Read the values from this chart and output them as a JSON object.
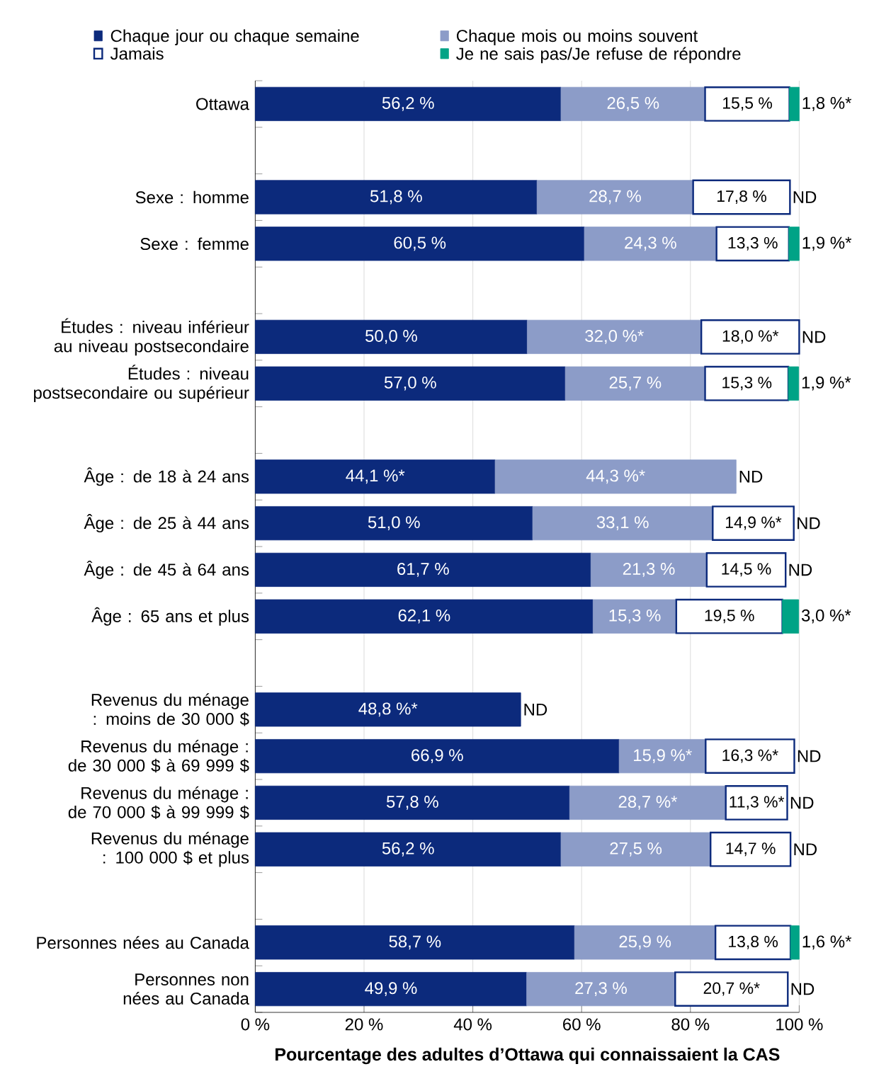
{
  "chart_data": {
    "type": "bar",
    "orientation": "horizontal",
    "stacked": true,
    "categories": [
      "Ottawa",
      null,
      "Sexe : homme",
      "Sexe : femme",
      null,
      "Études : niveau inférieur au niveau postsecondaire",
      "Études : niveau postsecondaire ou supérieur",
      null,
      "Âge : de 18 à 24 ans",
      "Âge : de 25 à 44 ans",
      "Âge : de 45 à 64 ans",
      "Âge : 65 ans et plus",
      null,
      "Revenus du ménage : moins de 30 000 $",
      "Revenus du ménage : de 30 000 $ à 69 999 $",
      "Revenus du ménage : de 70 000 $ à 99 999 $",
      "Revenus du ménage : 100 000 $ et plus",
      null,
      "Personnes nées au Canada",
      "Personnes non nées au Canada"
    ],
    "series": [
      {
        "name": "Chaque jour ou chaque semaine",
        "color": "#0c2a7c",
        "values": [
          56.2,
          null,
          51.8,
          60.5,
          null,
          50.0,
          57.0,
          null,
          44.1,
          51.0,
          61.7,
          62.1,
          null,
          48.8,
          66.9,
          57.8,
          56.2,
          null,
          58.7,
          49.9
        ],
        "value_labels": [
          "56,2 %",
          null,
          "51,8 %",
          "60,5 %",
          null,
          "50,0 %",
          "57,0 %",
          null,
          "44,1 %*",
          "51,0 %",
          "61,7 %",
          "62,1 %",
          null,
          "48,8 %*",
          "66,9 %",
          "57,8 %",
          "56,2 %",
          null,
          "58,7 %",
          "49,9 %"
        ]
      },
      {
        "name": "Chaque mois ou moins souvent",
        "color": "#8c9cc8",
        "values": [
          26.5,
          null,
          28.7,
          24.3,
          null,
          32.0,
          25.7,
          null,
          44.3,
          33.1,
          21.3,
          15.3,
          null,
          null,
          15.9,
          28.7,
          27.5,
          null,
          25.9,
          27.3
        ],
        "value_labels": [
          "26,5 %",
          null,
          "28,7 %",
          "24,3 %",
          null,
          "32,0 %*",
          "25,7 %",
          null,
          "44,3 %*",
          "33,1 %",
          "21,3 %",
          "15,3 %",
          null,
          null,
          "15,9 %*",
          "28,7 %*",
          "27,5 %",
          null,
          "25,9 %",
          "27,3 %"
        ]
      },
      {
        "name": "Jamais",
        "color": "#0c2a7c",
        "values": [
          15.5,
          null,
          17.8,
          13.3,
          null,
          18.0,
          15.3,
          null,
          null,
          14.9,
          14.5,
          19.5,
          null,
          null,
          16.3,
          11.3,
          14.7,
          null,
          13.8,
          20.7
        ],
        "value_labels": [
          "15,5 %",
          null,
          "17,8 %",
          "13,3 %",
          null,
          "18,0 %*",
          "15,3 %",
          null,
          null,
          "14,9 %*",
          "14,5 %",
          "19,5 %",
          null,
          null,
          "16,3 %*",
          "11,3 %*",
          "14,7 %",
          null,
          "13,8 %",
          "20,7 %*"
        ]
      },
      {
        "name": "Je ne sais pas/Je refuse de répondre",
        "color": "#00a386",
        "values": [
          1.8,
          null,
          null,
          1.9,
          null,
          null,
          1.9,
          null,
          null,
          null,
          null,
          3.0,
          null,
          null,
          null,
          null,
          null,
          null,
          1.6,
          null
        ],
        "value_labels": [
          "1,8 %*",
          null,
          "ND",
          "1,9 %*",
          null,
          "ND",
          "1,9 %*",
          null,
          "ND",
          "ND",
          "ND",
          "3,0 %*",
          null,
          "ND",
          "ND",
          "ND",
          "ND",
          null,
          "1,6 %*",
          "ND"
        ]
      }
    ],
    "xlim": [
      0,
      100
    ],
    "xticks": [
      {
        "value": 0,
        "label": "0 %"
      },
      {
        "value": 20,
        "label": "20 %"
      },
      {
        "value": 40,
        "label": "40 %"
      },
      {
        "value": 60,
        "label": "60 %"
      },
      {
        "value": 80,
        "label": "80 %"
      },
      {
        "value": 100,
        "label": "100 %"
      }
    ],
    "xlabel": "Pourcentage des adultes d’Ottawa qui connaissaient la CAS",
    "grid": "x",
    "legend": "top"
  }
}
